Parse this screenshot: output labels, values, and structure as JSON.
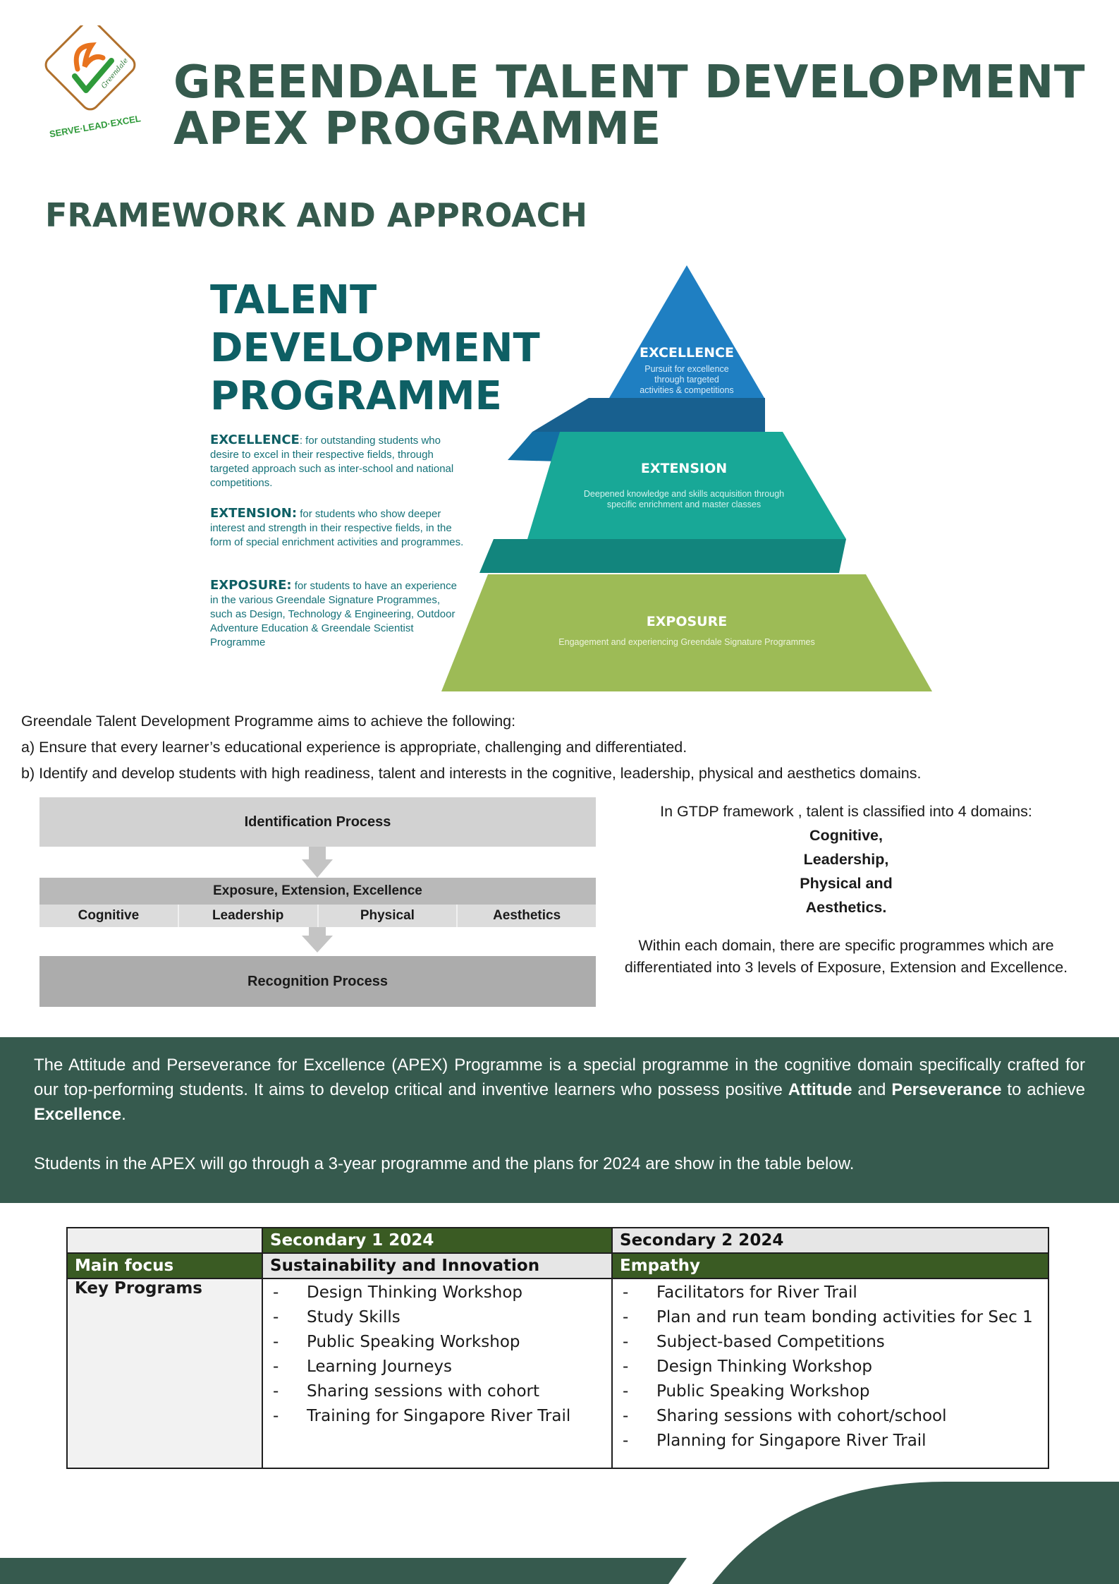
{
  "header": {
    "logo_motto": "SERVE·LEAD·EXCEL",
    "logo_script": "Greendale",
    "title_line1": "GREENDALE TALENT DEVELOPMENT",
    "title_line2": "APEX PROGRAMME"
  },
  "section_title": "FRAMEWORK AND APPROACH",
  "tdp": {
    "heading": [
      "TALENT",
      "DEVELOPMENT",
      "PROGRAMME"
    ],
    "descriptions": [
      {
        "term": "EXCELLENCE",
        "text": ": for outstanding students who desire to excel in their respective fields, through targeted approach such as inter-school and national competitions."
      },
      {
        "term": "EXTENSION:",
        "text": " for students who show deeper interest and strength in their respective fields, in the form of special enrichment activities and programmes."
      },
      {
        "term": "EXPOSURE:",
        "text": " for students to have an experience in the various Greendale Signature Programmes, such as Design, Technology & Engineering, Outdoor Adventure Education & Greendale Scientist Programme"
      }
    ]
  },
  "pyramid": {
    "levels": [
      {
        "name": "EXCELLENCE",
        "desc": [
          "Pursuit for excellence",
          "through targeted",
          "activities & competitions"
        ],
        "color": "#1f7fc2"
      },
      {
        "name": "EXTENSION",
        "desc": [
          "Deepened knowledge and skills acquisition through",
          "specific enrichment and master classes"
        ],
        "color": "#18a897"
      },
      {
        "name": "EXPOSURE",
        "desc": [
          "Engagement and experiencing Greendale Signature Programmes"
        ],
        "color": "#9dbb56"
      }
    ]
  },
  "aims": {
    "intro": "Greendale Talent Development Programme aims to achieve the following:",
    "a": "a) Ensure that every learner’s educational experience is appropriate, challenging and differentiated.",
    "b": "b) Identify and develop students with high readiness, talent and interests in the cognitive, leadership, physical and aesthetics domains."
  },
  "flow": {
    "identification": "Identification Process",
    "levels": "Exposure, Extension, Excellence",
    "domains": [
      "Cognitive",
      "Leadership",
      "Physical",
      "Aesthetics"
    ],
    "recognition": "Recognition Process"
  },
  "gtdp": {
    "intro": "In GTDP framework , talent is classified into 4 domains:",
    "domains": [
      "Cognitive,",
      "Leadership,",
      "Physical and",
      "Aesthetics."
    ],
    "within": "Within each domain, there are specific programmes which are differentiated into 3 levels of Exposure, Extension and Excellence."
  },
  "apex": {
    "p1_start": "The Attitude and Perseverance for Excellence (APEX) Programme is a special programme in the cognitive domain specifically crafted for our top-performing students. It aims to develop critical and inventive learners who possess positive ",
    "attitude": "Attitude",
    "and": " and ",
    "perseverance": "Perseverance",
    "to_achieve": " to achieve ",
    "excellence": "Excellence",
    "period": ".",
    "p2": "Students in the APEX will go through a 3-year programme and the plans for 2024 are show in the table below."
  },
  "table": {
    "col1": "Secondary 1 2024",
    "col2": "Secondary 2 2024",
    "main_focus_label": "Main focus",
    "focus1": "Sustainability and Innovation",
    "focus2": "Empathy",
    "key_label": "Key Programs",
    "programs1": [
      "Design Thinking Workshop",
      "Study Skills",
      "Public Speaking Workshop",
      "Learning Journeys",
      "Sharing sessions with cohort",
      "Training for Singapore River Trail"
    ],
    "programs2": [
      "Facilitators for River Trail",
      "Plan and run team bonding activities for Sec 1",
      "Subject-based Competitions",
      "Design Thinking Workshop",
      "Public Speaking Workshop",
      "Sharing sessions with cohort/school",
      "Planning for Singapore River Trail"
    ]
  },
  "colors": {
    "brand_green": "#355a4d",
    "teal": "#0e5f64",
    "table_green": "#3a5b23"
  }
}
